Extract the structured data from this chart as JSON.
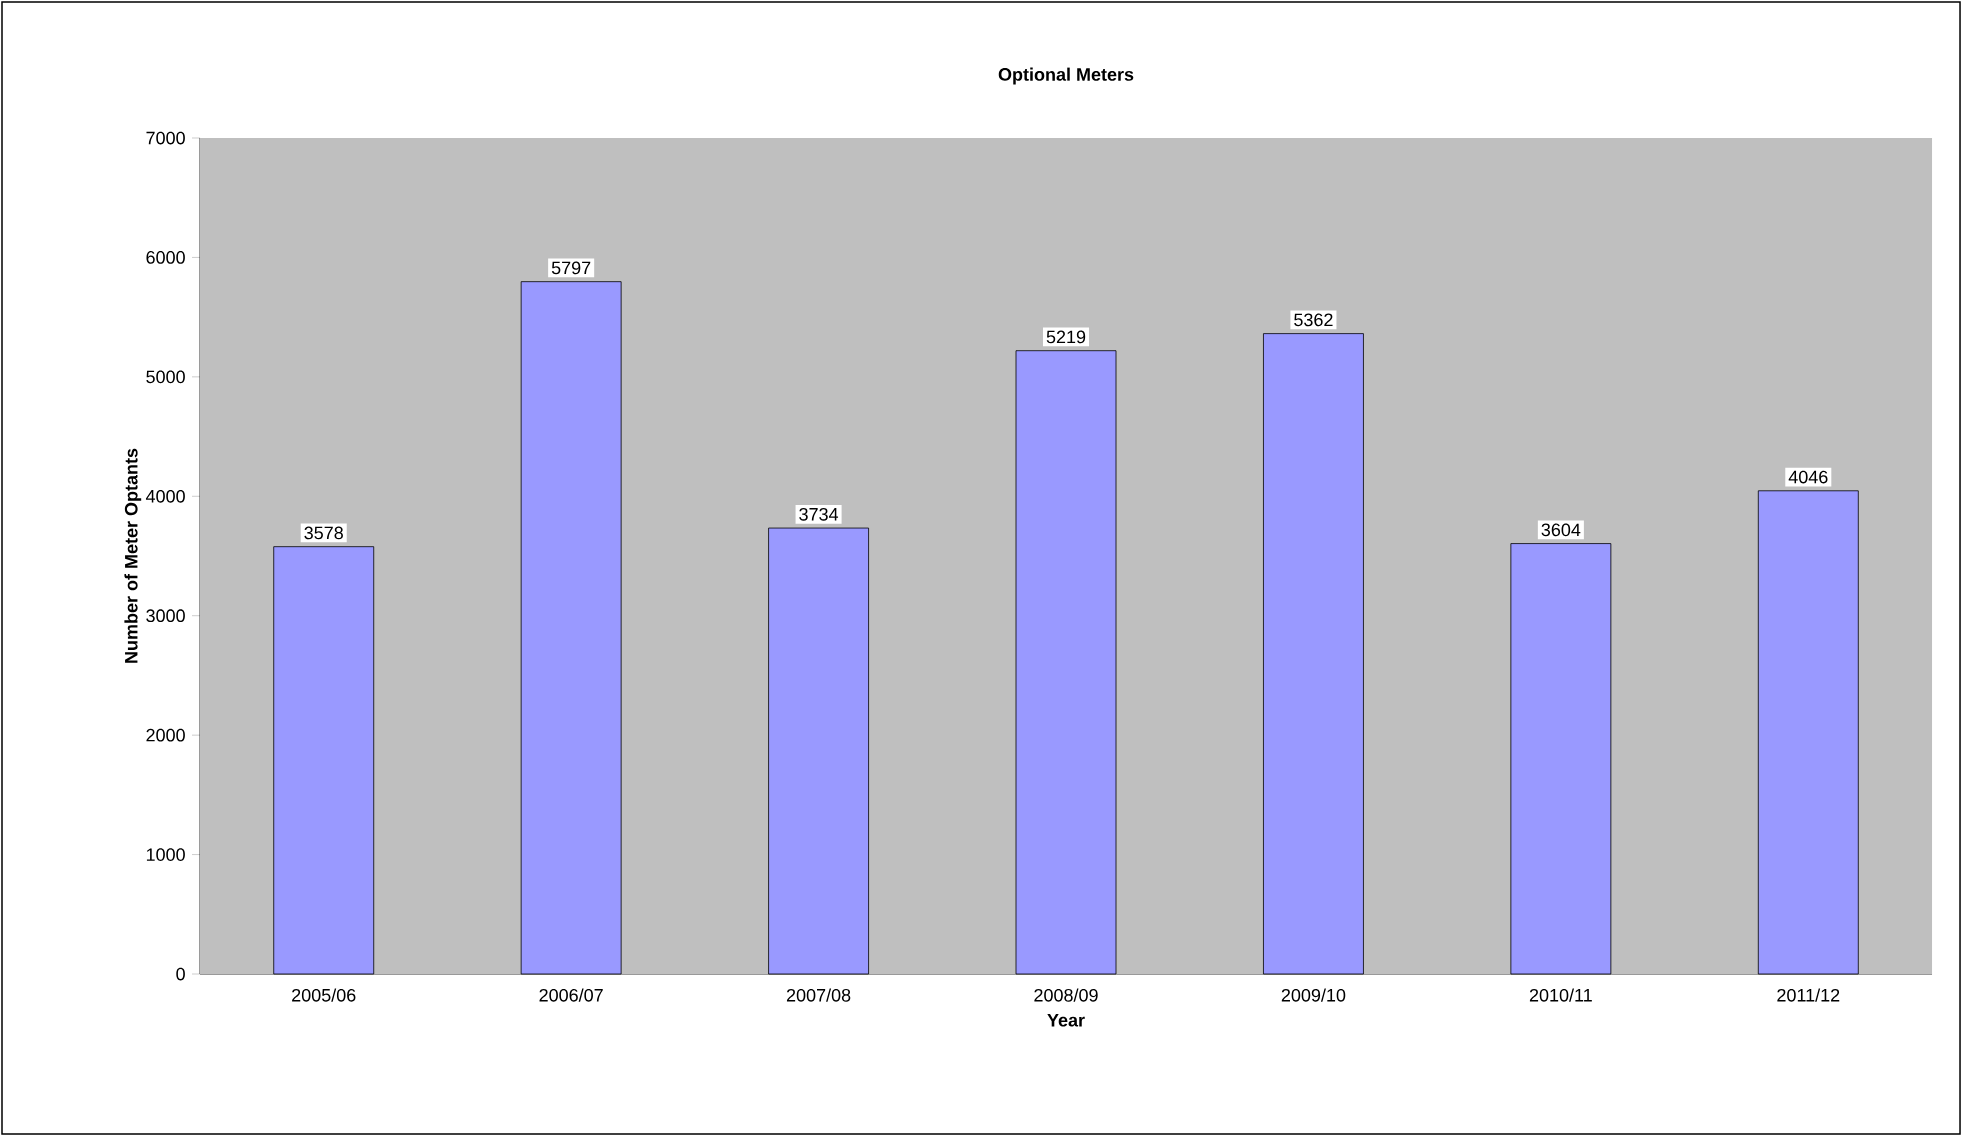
{
  "chart_data": {
    "type": "bar",
    "title": "Optional Meters",
    "xlabel": "Year",
    "ylabel": "Number of Meter Optants",
    "categories": [
      "2005/06",
      "2006/07",
      "2007/08",
      "2008/09",
      "2009/10",
      "2010/11",
      "2011/12"
    ],
    "values": [
      3578,
      5797,
      3734,
      5219,
      5362,
      3604,
      4046
    ],
    "color": "#9999ff",
    "data_labels": true,
    "ylim": [
      0,
      7000
    ],
    "yticks": [
      0,
      1000,
      2000,
      3000,
      4000,
      5000,
      6000,
      7000
    ],
    "grid": false
  }
}
